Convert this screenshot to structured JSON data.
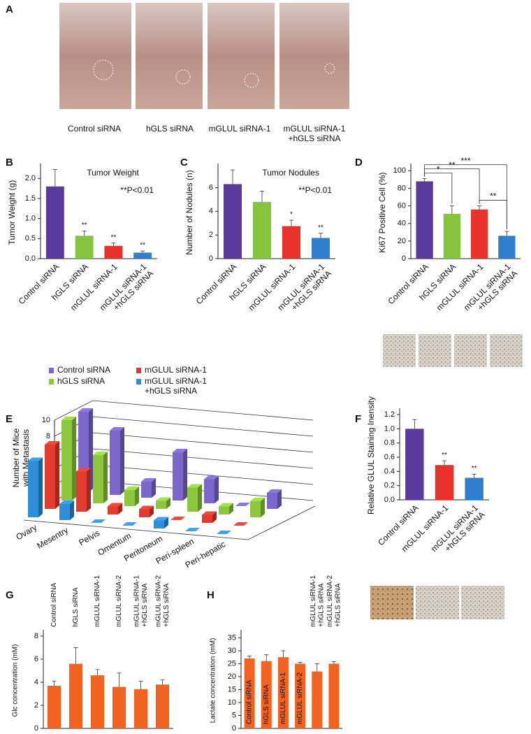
{
  "figure_a": {
    "panel": "A",
    "captions": [
      "Control siRNA",
      "hGLS siRNA",
      "mGLUL siRNA-1",
      "mGLUL siRNA-1\n+hGLS siRNA"
    ]
  },
  "chart_data": [
    {
      "panel": "B",
      "type": "bar",
      "title": "Tumor Weight",
      "annotation": "**P<0.01",
      "ylabel": "Tumor Weight (g)",
      "categories": [
        "Control siRNA",
        "hGLS siRNA",
        "mGLUL siRNA-1",
        "mGLUL siRNA-1\n+hGLS siRNA"
      ],
      "values": [
        1.8,
        0.57,
        0.32,
        0.15
      ],
      "errors": [
        0.42,
        0.12,
        0.07,
        0.04
      ],
      "significance": [
        null,
        "**",
        "**",
        "**"
      ],
      "colors": [
        "#5b3a9e",
        "#86c440",
        "#e8322b",
        "#2f7fce"
      ],
      "ylim": [
        0,
        2.3
      ],
      "yticks": [
        {
          "value": 0,
          "label": "0.0"
        },
        0.5,
        {
          "value": 1,
          "label": "1.0"
        },
        1.5,
        {
          "value": 2,
          "label": "2.0"
        }
      ]
    },
    {
      "panel": "C",
      "type": "bar",
      "title": "Tumor Nodules",
      "annotation": "**P<0.01",
      "ylabel": "Number of Nodules (n)",
      "categories": [
        "Control siRNA",
        "hGLS siRNA",
        "mGLUL siRNA-1",
        "mGLUL siRNA-1\n+hGLS siRNA"
      ],
      "values": [
        6.3,
        4.8,
        2.75,
        1.75
      ],
      "errors": [
        1.2,
        0.9,
        0.5,
        0.4
      ],
      "significance": [
        null,
        null,
        "*",
        "**"
      ],
      "colors": [
        "#5b3a9e",
        "#86c440",
        "#e8322b",
        "#2f7fce"
      ],
      "ylim": [
        0,
        7.8
      ],
      "yticks": [
        0,
        2,
        4,
        6
      ]
    },
    {
      "panel": "D",
      "type": "bar",
      "ylabel": "Ki67 Positive Cell (%)",
      "categories": [
        "Control siRNA",
        "hGLS siRNA",
        "mGLUL siRNA-1",
        "mGLUL siRNA-1\n+hGLS siRNA"
      ],
      "values": [
        88,
        51,
        56,
        26
      ],
      "errors": [
        3,
        9,
        4,
        5
      ],
      "colors": [
        "#5b3a9e",
        "#86c440",
        "#e8322b",
        "#2f7fce"
      ],
      "comparisons": [
        {
          "pair": [
            "Control siRNA",
            "hGLS siRNA"
          ],
          "label": "*"
        },
        {
          "pair": [
            "Control siRNA",
            "mGLUL siRNA-1"
          ],
          "label": "**"
        },
        {
          "pair": [
            "Control siRNA",
            "mGLUL siRNA-1\n+hGLS siRNA"
          ],
          "label": "***"
        },
        {
          "pair": [
            "mGLUL siRNA-1",
            "mGLUL siRNA-1\n+hGLS siRNA"
          ],
          "label": "**"
        }
      ],
      "ylim": [
        0,
        105
      ],
      "yticks": [
        0,
        20,
        40,
        60,
        80,
        100
      ]
    },
    {
      "panel": "E",
      "type": "bar3d",
      "ylabel": "Number of Mice\nwith Metastasis",
      "categories": [
        "Ovary",
        "Mesentry",
        "Pelvis",
        "Omentum",
        "Peritoneum",
        "Peri-spleen",
        "Peri-hepatic"
      ],
      "series": [
        {
          "name": "Control siRNA",
          "color": "#7a67c9",
          "values": [
            10,
            8,
            2,
            6,
            3,
            0,
            2
          ]
        },
        {
          "name": "hGLS siRNA",
          "color": "#8ec63f",
          "values": [
            10,
            6,
            2,
            1,
            3,
            1,
            2
          ]
        },
        {
          "name": "mGLUL siRNA-1",
          "color": "#e33b2e",
          "values": [
            8,
            5,
            1,
            1,
            0,
            1,
            0
          ]
        },
        {
          "name": "mGLUL siRNA-1\n+hGLS siRNA",
          "color": "#2e8fd8",
          "values": [
            7,
            2,
            0,
            0,
            1,
            0,
            0
          ]
        }
      ],
      "ylim": [
        0,
        10
      ],
      "yticks": [
        0,
        2,
        4,
        6,
        8,
        10
      ]
    },
    {
      "panel": "F",
      "type": "bar",
      "ylabel": "Relative GLUL Staining Inensity",
      "categories": [
        "Control siRNA",
        "mGLUL siRNA-1",
        "mGLUL siRNA-1\n+hGLS siRNA"
      ],
      "values": [
        1.0,
        0.49,
        0.31
      ],
      "errors": [
        0.13,
        0.06,
        0.05
      ],
      "significance": [
        null,
        "**",
        "**"
      ],
      "colors": [
        "#5b3a9e",
        "#e8322b",
        "#2f7fce"
      ],
      "ylim": [
        0,
        1.25
      ],
      "yticks": [
        {
          "value": 0,
          "label": "0.0"
        },
        0.2,
        0.4,
        0.6,
        0.8,
        {
          "value": 1,
          "label": "1.0"
        },
        1.2
      ]
    },
    {
      "panel": "G",
      "type": "bar",
      "category_labels": "above",
      "ylabel": "Glc concentration (mM)",
      "categories": [
        "Control siRNA",
        "hGLS siRNA",
        "mGLUL siRNA-1",
        "mGLUL siRNA-2",
        "mGLUL siRNA-1\n+hGLS siRNA",
        "mGLUL siRNA-2\n+hGLS siRNA"
      ],
      "values": [
        3.7,
        5.6,
        4.6,
        3.6,
        3.4,
        3.8
      ],
      "errors": [
        0.4,
        1.4,
        0.5,
        1.2,
        0.7,
        0.4
      ],
      "color": "#f26322",
      "ylim": [
        0,
        8.3
      ],
      "yticks": [
        0,
        2,
        4,
        6,
        8
      ]
    },
    {
      "panel": "H",
      "type": "bar",
      "category_labels": "inside",
      "ylabel": "Lactate concentration (mM)",
      "categories": [
        "Control siRNA",
        "hGLS siRNA",
        "mGLUL siRNA-1",
        "mGLUL siRNA-2",
        "mGLUL siRNA-1\n+hGLS siRNA",
        "mGLUL siRNA-2\n+hGLS siRNA"
      ],
      "values": [
        27,
        26,
        27.5,
        25,
        22,
        25
      ],
      "errors": [
        1,
        2.5,
        2.5,
        0.5,
        3,
        0.8
      ],
      "color": "#f26322",
      "ylim": [
        0,
        37
      ],
      "yticks": [
        0,
        5,
        10,
        15,
        20,
        25,
        30,
        35
      ]
    }
  ]
}
